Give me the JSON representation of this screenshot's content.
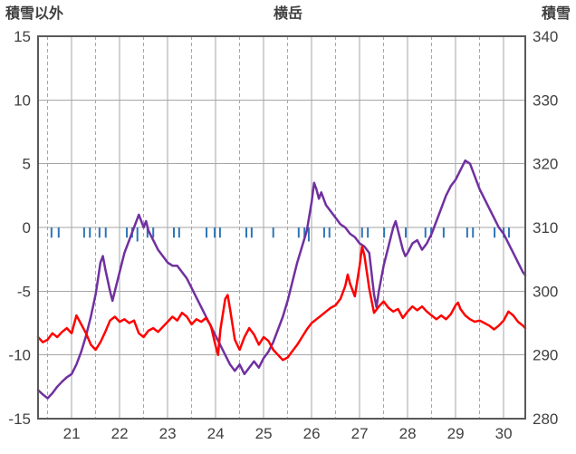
{
  "chart_data": {
    "type": "line",
    "title": "横岳",
    "left_axis": {
      "label": "積雪以外",
      "min": -15,
      "max": 15,
      "ticks": [
        15,
        10,
        5,
        0,
        -5,
        -10,
        -15
      ]
    },
    "right_axis": {
      "label": "積雪",
      "min": 280,
      "max": 340,
      "ticks": [
        340,
        330,
        320,
        310,
        300,
        290,
        280
      ]
    },
    "x_axis": {
      "min": 20.3,
      "max": 30.45,
      "major_ticks": [
        21,
        22,
        23,
        24,
        25,
        26,
        27,
        28,
        29,
        30
      ],
      "minor_ticks": [
        20.5,
        21.5,
        22.5,
        23.5,
        24.5,
        25.5,
        26.5,
        27.5,
        28.5,
        29.5
      ],
      "tick_labels": [
        "21",
        "22",
        "23",
        "24",
        "25",
        "26",
        "27",
        "28",
        "29",
        "30"
      ]
    },
    "colors": {
      "grid": "#a6a6a6",
      "border": "#595959",
      "red_series": "#ff0000",
      "purple_series": "#7030a0",
      "blue_marks": "#2e75b6",
      "labels": "#404040"
    },
    "series": [
      {
        "name": "red",
        "axis": "left",
        "color": "#ff0000",
        "points": [
          [
            20.3,
            -8.6
          ],
          [
            20.4,
            -9.0
          ],
          [
            20.5,
            -8.8
          ],
          [
            20.6,
            -8.3
          ],
          [
            20.7,
            -8.6
          ],
          [
            20.8,
            -8.2
          ],
          [
            20.9,
            -7.9
          ],
          [
            21.0,
            -8.3
          ],
          [
            21.1,
            -6.9
          ],
          [
            21.2,
            -7.6
          ],
          [
            21.3,
            -8.3
          ],
          [
            21.4,
            -9.2
          ],
          [
            21.5,
            -9.6
          ],
          [
            21.6,
            -9.0
          ],
          [
            21.7,
            -8.2
          ],
          [
            21.8,
            -7.3
          ],
          [
            21.9,
            -7.0
          ],
          [
            22.0,
            -7.4
          ],
          [
            22.1,
            -7.2
          ],
          [
            22.2,
            -7.5
          ],
          [
            22.3,
            -7.3
          ],
          [
            22.4,
            -8.3
          ],
          [
            22.5,
            -8.6
          ],
          [
            22.6,
            -8.1
          ],
          [
            22.7,
            -7.9
          ],
          [
            22.8,
            -8.2
          ],
          [
            22.9,
            -7.8
          ],
          [
            23.0,
            -7.4
          ],
          [
            23.1,
            -7.0
          ],
          [
            23.2,
            -7.3
          ],
          [
            23.3,
            -6.7
          ],
          [
            23.4,
            -7.0
          ],
          [
            23.5,
            -7.6
          ],
          [
            23.6,
            -7.2
          ],
          [
            23.7,
            -7.4
          ],
          [
            23.8,
            -7.1
          ],
          [
            23.9,
            -7.7
          ],
          [
            24.0,
            -9.3
          ],
          [
            24.05,
            -10.0
          ],
          [
            24.1,
            -8.0
          ],
          [
            24.2,
            -5.6
          ],
          [
            24.25,
            -5.3
          ],
          [
            24.3,
            -6.4
          ],
          [
            24.4,
            -8.8
          ],
          [
            24.5,
            -9.6
          ],
          [
            24.6,
            -8.6
          ],
          [
            24.7,
            -7.9
          ],
          [
            24.8,
            -8.4
          ],
          [
            24.9,
            -9.2
          ],
          [
            25.0,
            -8.6
          ],
          [
            25.1,
            -8.9
          ],
          [
            25.2,
            -9.6
          ],
          [
            25.3,
            -10.0
          ],
          [
            25.4,
            -10.4
          ],
          [
            25.5,
            -10.2
          ],
          [
            25.6,
            -9.7
          ],
          [
            25.7,
            -9.2
          ],
          [
            25.8,
            -8.6
          ],
          [
            25.9,
            -8.0
          ],
          [
            26.0,
            -7.5
          ],
          [
            26.1,
            -7.2
          ],
          [
            26.2,
            -6.9
          ],
          [
            26.3,
            -6.6
          ],
          [
            26.4,
            -6.3
          ],
          [
            26.5,
            -6.1
          ],
          [
            26.6,
            -5.6
          ],
          [
            26.7,
            -4.6
          ],
          [
            26.75,
            -3.7
          ],
          [
            26.8,
            -4.4
          ],
          [
            26.9,
            -5.4
          ],
          [
            27.0,
            -3.0
          ],
          [
            27.05,
            -1.5
          ],
          [
            27.1,
            -2.2
          ],
          [
            27.2,
            -4.8
          ],
          [
            27.3,
            -6.7
          ],
          [
            27.4,
            -6.2
          ],
          [
            27.5,
            -5.8
          ],
          [
            27.6,
            -6.3
          ],
          [
            27.7,
            -6.6
          ],
          [
            27.8,
            -6.4
          ],
          [
            27.9,
            -7.1
          ],
          [
            28.0,
            -6.6
          ],
          [
            28.1,
            -6.2
          ],
          [
            28.2,
            -6.5
          ],
          [
            28.3,
            -6.2
          ],
          [
            28.4,
            -6.6
          ],
          [
            28.5,
            -6.9
          ],
          [
            28.6,
            -7.2
          ],
          [
            28.7,
            -6.9
          ],
          [
            28.8,
            -7.2
          ],
          [
            28.9,
            -6.8
          ],
          [
            29.0,
            -6.1
          ],
          [
            29.05,
            -5.9
          ],
          [
            29.1,
            -6.4
          ],
          [
            29.2,
            -6.9
          ],
          [
            29.3,
            -7.2
          ],
          [
            29.4,
            -7.4
          ],
          [
            29.5,
            -7.3
          ],
          [
            29.6,
            -7.5
          ],
          [
            29.7,
            -7.7
          ],
          [
            29.8,
            -8.0
          ],
          [
            29.9,
            -7.7
          ],
          [
            30.0,
            -7.3
          ],
          [
            30.1,
            -6.6
          ],
          [
            30.2,
            -6.9
          ],
          [
            30.3,
            -7.4
          ],
          [
            30.4,
            -7.7
          ],
          [
            30.45,
            -7.9
          ]
        ]
      },
      {
        "name": "purple",
        "axis": "right",
        "color": "#7030a0",
        "points": [
          [
            20.3,
            284.5
          ],
          [
            20.4,
            283.8
          ],
          [
            20.5,
            283.2
          ],
          [
            20.6,
            284.0
          ],
          [
            20.7,
            285.0
          ],
          [
            20.8,
            285.8
          ],
          [
            20.9,
            286.5
          ],
          [
            21.0,
            287.0
          ],
          [
            21.1,
            288.5
          ],
          [
            21.2,
            290.5
          ],
          [
            21.3,
            293.0
          ],
          [
            21.4,
            296.0
          ],
          [
            21.5,
            299.5
          ],
          [
            21.55,
            302.0
          ],
          [
            21.6,
            304.5
          ],
          [
            21.65,
            305.5
          ],
          [
            21.7,
            303.5
          ],
          [
            21.8,
            300.0
          ],
          [
            21.85,
            298.5
          ],
          [
            21.9,
            300.0
          ],
          [
            22.0,
            303.0
          ],
          [
            22.1,
            306.0
          ],
          [
            22.2,
            308.0
          ],
          [
            22.3,
            310.0
          ],
          [
            22.4,
            312.0
          ],
          [
            22.45,
            311.0
          ],
          [
            22.5,
            310.0
          ],
          [
            22.55,
            311.0
          ],
          [
            22.6,
            309.5
          ],
          [
            22.7,
            308.0
          ],
          [
            22.8,
            306.5
          ],
          [
            22.9,
            305.5
          ],
          [
            23.0,
            304.5
          ],
          [
            23.1,
            304.0
          ],
          [
            23.2,
            304.0
          ],
          [
            23.3,
            303.0
          ],
          [
            23.4,
            302.0
          ],
          [
            23.5,
            300.5
          ],
          [
            23.6,
            299.0
          ],
          [
            23.7,
            297.5
          ],
          [
            23.8,
            296.0
          ],
          [
            23.9,
            294.5
          ],
          [
            24.0,
            293.0
          ],
          [
            24.1,
            291.5
          ],
          [
            24.2,
            290.0
          ],
          [
            24.3,
            288.5
          ],
          [
            24.4,
            287.5
          ],
          [
            24.5,
            288.5
          ],
          [
            24.6,
            287.0
          ],
          [
            24.7,
            288.0
          ],
          [
            24.8,
            289.0
          ],
          [
            24.9,
            288.0
          ],
          [
            25.0,
            289.5
          ],
          [
            25.1,
            290.5
          ],
          [
            25.2,
            292.0
          ],
          [
            25.3,
            294.0
          ],
          [
            25.4,
            296.0
          ],
          [
            25.5,
            298.5
          ],
          [
            25.6,
            301.5
          ],
          [
            25.7,
            304.5
          ],
          [
            25.8,
            307.0
          ],
          [
            25.9,
            309.5
          ],
          [
            26.0,
            314.0
          ],
          [
            26.05,
            317.0
          ],
          [
            26.1,
            316.0
          ],
          [
            26.15,
            314.5
          ],
          [
            26.2,
            315.5
          ],
          [
            26.3,
            313.5
          ],
          [
            26.4,
            312.5
          ],
          [
            26.5,
            311.5
          ],
          [
            26.6,
            310.5
          ],
          [
            26.7,
            310.0
          ],
          [
            26.8,
            309.0
          ],
          [
            26.9,
            308.5
          ],
          [
            27.0,
            307.5
          ],
          [
            27.1,
            307.0
          ],
          [
            27.2,
            306.0
          ],
          [
            27.3,
            299.5
          ],
          [
            27.35,
            297.5
          ],
          [
            27.4,
            300.0
          ],
          [
            27.5,
            304.0
          ],
          [
            27.6,
            307.0
          ],
          [
            27.7,
            310.0
          ],
          [
            27.75,
            311.0
          ],
          [
            27.8,
            309.5
          ],
          [
            27.9,
            306.5
          ],
          [
            27.95,
            305.5
          ],
          [
            28.0,
            306.0
          ],
          [
            28.1,
            307.5
          ],
          [
            28.2,
            308.0
          ],
          [
            28.3,
            306.5
          ],
          [
            28.4,
            307.5
          ],
          [
            28.5,
            309.0
          ],
          [
            28.6,
            311.0
          ],
          [
            28.7,
            313.0
          ],
          [
            28.8,
            315.0
          ],
          [
            28.9,
            316.5
          ],
          [
            29.0,
            317.5
          ],
          [
            29.1,
            319.0
          ],
          [
            29.2,
            320.5
          ],
          [
            29.3,
            320.0
          ],
          [
            29.4,
            318.0
          ],
          [
            29.5,
            316.0
          ],
          [
            29.6,
            314.5
          ],
          [
            29.7,
            313.0
          ],
          [
            29.8,
            311.5
          ],
          [
            29.9,
            310.0
          ],
          [
            30.0,
            309.0
          ],
          [
            30.1,
            307.5
          ],
          [
            30.2,
            306.0
          ],
          [
            30.3,
            304.5
          ],
          [
            30.4,
            303.0
          ],
          [
            30.45,
            302.5
          ]
        ]
      }
    ],
    "precipitation_marks": {
      "name": "blue",
      "axis": "left",
      "color": "#2e75b6",
      "baseline": 0,
      "points": [
        [
          20.58,
          -0.8
        ],
        [
          20.73,
          -0.8
        ],
        [
          21.26,
          -0.8
        ],
        [
          21.38,
          -0.8
        ],
        [
          21.58,
          -0.8
        ],
        [
          21.71,
          -0.8
        ],
        [
          22.15,
          -0.8
        ],
        [
          22.26,
          -0.8
        ],
        [
          22.37,
          -1.1
        ],
        [
          22.58,
          -0.8
        ],
        [
          22.7,
          -0.8
        ],
        [
          23.13,
          -0.8
        ],
        [
          23.24,
          -0.8
        ],
        [
          23.81,
          -0.8
        ],
        [
          23.98,
          -0.8
        ],
        [
          24.09,
          -0.8
        ],
        [
          24.64,
          -0.8
        ],
        [
          24.75,
          -0.8
        ],
        [
          25.2,
          -0.8
        ],
        [
          25.73,
          -0.8
        ],
        [
          25.85,
          -0.8
        ],
        [
          25.94,
          -1.1
        ],
        [
          26.26,
          -0.8
        ],
        [
          26.37,
          -0.8
        ],
        [
          27.05,
          -0.8
        ],
        [
          27.17,
          -0.8
        ],
        [
          27.51,
          -0.8
        ],
        [
          27.96,
          -0.8
        ],
        [
          28.37,
          -0.8
        ],
        [
          28.49,
          -0.8
        ],
        [
          28.75,
          -0.8
        ],
        [
          29.24,
          -0.8
        ],
        [
          29.36,
          -0.8
        ],
        [
          29.81,
          -0.8
        ],
        [
          30.0,
          -0.8
        ],
        [
          30.11,
          -0.8
        ]
      ]
    }
  }
}
